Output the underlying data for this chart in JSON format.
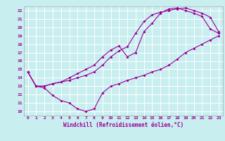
{
  "xlabel": "Windchill (Refroidissement éolien,°C)",
  "bg_color": "#c8eef0",
  "grid_color": "#ffffff",
  "line_color": "#990099",
  "xlim": [
    -0.5,
    23.5
  ],
  "ylim": [
    9.5,
    22.5
  ],
  "xticks": [
    0,
    1,
    2,
    3,
    4,
    5,
    6,
    7,
    8,
    9,
    10,
    11,
    12,
    13,
    14,
    15,
    16,
    17,
    18,
    19,
    20,
    21,
    22,
    23
  ],
  "yticks": [
    10,
    11,
    12,
    13,
    14,
    15,
    16,
    17,
    18,
    19,
    20,
    21,
    22
  ],
  "curve1_x": [
    0,
    1,
    2,
    3,
    4,
    5,
    6,
    7,
    8,
    9,
    10,
    11,
    12,
    13,
    14,
    15,
    16,
    17,
    18,
    19,
    20,
    21,
    22,
    23
  ],
  "curve1_y": [
    14.7,
    13.0,
    12.8,
    11.9,
    11.3,
    11.0,
    10.3,
    10.0,
    10.3,
    12.2,
    13.0,
    13.3,
    13.7,
    14.0,
    14.3,
    14.7,
    15.0,
    15.5,
    16.2,
    17.0,
    17.5,
    18.0,
    18.5,
    19.0
  ],
  "curve2_x": [
    0,
    1,
    2,
    3,
    4,
    5,
    6,
    7,
    8,
    9,
    10,
    11,
    12,
    13,
    14,
    15,
    16,
    17,
    18,
    19,
    20,
    21,
    22,
    23
  ],
  "curve2_y": [
    14.7,
    13.0,
    13.0,
    13.3,
    13.5,
    13.7,
    14.0,
    14.3,
    14.7,
    15.5,
    16.5,
    17.2,
    17.7,
    19.3,
    20.7,
    21.5,
    21.8,
    22.0,
    22.2,
    22.3,
    22.0,
    21.7,
    21.2,
    19.5
  ],
  "curve3_x": [
    0,
    1,
    2,
    3,
    4,
    5,
    6,
    7,
    8,
    9,
    10,
    11,
    12,
    13,
    14,
    15,
    16,
    17,
    18,
    19,
    20,
    21,
    22,
    23
  ],
  "curve3_y": [
    14.7,
    13.0,
    13.0,
    13.3,
    13.5,
    14.0,
    14.5,
    15.0,
    15.5,
    16.5,
    17.3,
    17.8,
    16.5,
    17.0,
    19.5,
    20.5,
    21.7,
    22.2,
    22.3,
    22.0,
    21.7,
    21.3,
    19.8,
    19.3
  ]
}
